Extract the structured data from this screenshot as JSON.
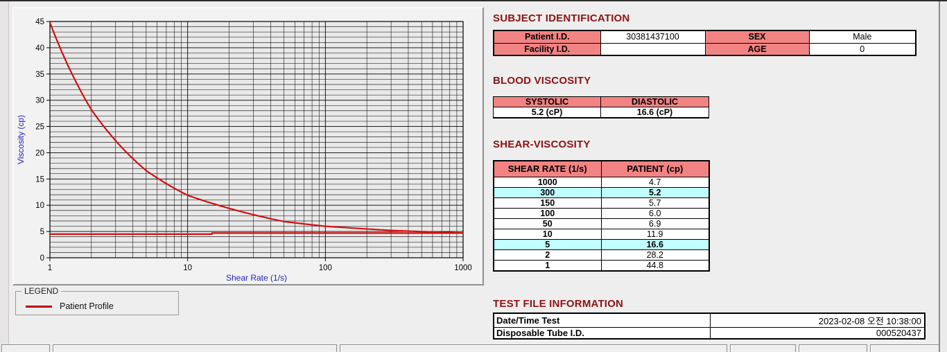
{
  "colors": {
    "background": "#efeeee",
    "section_title": "#8e1212",
    "table_header_bg": "#f28383",
    "highlight_bg": "#bfffff",
    "curve_red": "#d01010",
    "axis_label_blue": "#2222bb",
    "legend_line": "#c00000"
  },
  "chart_data": {
    "type": "line",
    "title": "",
    "xlabel": "Shear Rate (1/s)",
    "ylabel": "Viscosity (cp)",
    "x_scale": "log",
    "xlim": [
      1,
      1000
    ],
    "ylim": [
      0,
      45
    ],
    "x_ticks": [
      1,
      10,
      100,
      1000
    ],
    "y_ticks": [
      0,
      5,
      10,
      15,
      20,
      25,
      30,
      35,
      40,
      45
    ],
    "grid": {
      "y_minor": 1,
      "x_minor_log": true,
      "on": true
    },
    "legend_position": "below-left",
    "series": [
      {
        "name": "Patient Profile",
        "color": "#d01010",
        "smooth": true,
        "x": [
          1,
          2,
          5,
          10,
          50,
          100,
          150,
          300,
          1000
        ],
        "y": [
          44.8,
          28.2,
          16.6,
          11.9,
          6.9,
          6.0,
          5.7,
          5.2,
          4.7
        ]
      },
      {
        "name": "baseline",
        "color": "#d01010",
        "smooth": false,
        "x": [
          1,
          15,
          15,
          1000
        ],
        "y": [
          4.5,
          4.5,
          4.7,
          4.7
        ]
      }
    ]
  },
  "legend": {
    "title": "LEGEND",
    "entries": [
      {
        "label": "Patient Profile",
        "color": "#c00000"
      }
    ]
  },
  "sections": {
    "subject": {
      "title": "SUBJECT IDENTIFICATION",
      "rows": [
        {
          "label1": "Patient I.D.",
          "value1": "30381437100",
          "label2": "SEX",
          "value2": "Male"
        },
        {
          "label1": "Facility I.D.",
          "value1": "",
          "label2": "AGE",
          "value2": "0"
        }
      ]
    },
    "blood": {
      "title": "BLOOD VISCOSITY",
      "headers": [
        "SYSTOLIC",
        "DIASTOLIC"
      ],
      "values": [
        "5.2 (cP)",
        "16.6 (cP)"
      ]
    },
    "shear": {
      "title": "SHEAR-VISCOSITY",
      "headers": [
        "SHEAR RATE (1/s)",
        "PATIENT (cp)"
      ],
      "rows": [
        {
          "rate": "1000",
          "value": "4.7",
          "highlight": false
        },
        {
          "rate": "300",
          "value": "5.2",
          "highlight": true
        },
        {
          "rate": "150",
          "value": "5.7",
          "highlight": false
        },
        {
          "rate": "100",
          "value": "6.0",
          "highlight": false
        },
        {
          "rate": "50",
          "value": "6.9",
          "highlight": false
        },
        {
          "rate": "10",
          "value": "11.9",
          "highlight": false
        },
        {
          "rate": "5",
          "value": "16.6",
          "highlight": true
        },
        {
          "rate": "2",
          "value": "28.2",
          "highlight": false
        },
        {
          "rate": "1",
          "value": "44.8",
          "highlight": false
        }
      ]
    },
    "test_file": {
      "title": "TEST FILE INFORMATION",
      "rows": [
        {
          "label": "Date/Time Test",
          "value": "2023-02-08  오전 10:38:00"
        },
        {
          "label": "Disposable Tube I.D.",
          "value": "000520437"
        }
      ]
    }
  }
}
